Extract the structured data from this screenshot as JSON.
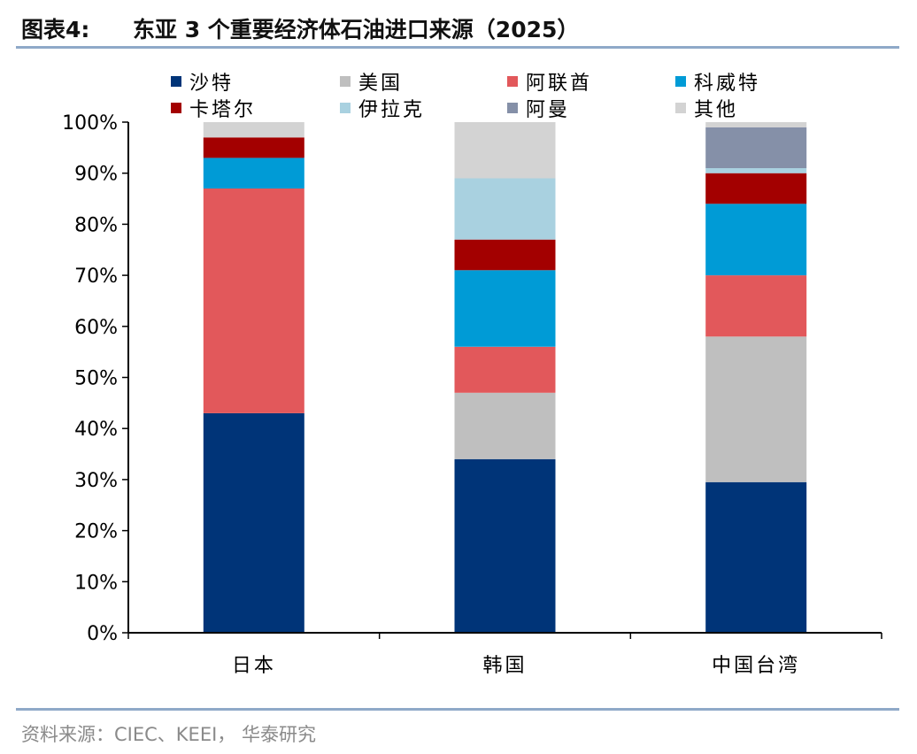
{
  "header": {
    "figure_label": "图表4:",
    "title": "东亚 3 个重要经济体石油进口来源（2025）"
  },
  "footer": {
    "source": "资料来源：CIEC、KEEI， 华泰研究"
  },
  "colors": {
    "沙特": "#003478",
    "美国": "#bfbfbf",
    "阿联酋": "#e2585b",
    "科威特": "#009bd6",
    "卡塔尔": "#a30000",
    "伊拉克": "#a9d1e0",
    "阿曼": "#8590a8",
    "其他": "#d3d3d3",
    "rule": "#8fa9c8"
  },
  "chart_data": {
    "type": "bar",
    "stacked": true,
    "title": "",
    "xlabel": "",
    "ylabel": "",
    "ylim": [
      0,
      100
    ],
    "y_ticks": [
      "0%",
      "10%",
      "20%",
      "30%",
      "40%",
      "50%",
      "60%",
      "70%",
      "80%",
      "90%",
      "100%"
    ],
    "legend_position": "top",
    "categories": [
      "日本",
      "韩国",
      "中国台湾"
    ],
    "series": [
      {
        "name": "沙特",
        "values": [
          43,
          34,
          29.5
        ]
      },
      {
        "name": "美国",
        "values": [
          0,
          13,
          28.5
        ]
      },
      {
        "name": "阿联酋",
        "values": [
          44,
          9,
          12
        ]
      },
      {
        "name": "科威特",
        "values": [
          6,
          15,
          14
        ]
      },
      {
        "name": "卡塔尔",
        "values": [
          4,
          6,
          6
        ]
      },
      {
        "name": "伊拉克",
        "values": [
          0,
          12,
          1
        ]
      },
      {
        "name": "阿曼",
        "values": [
          0,
          0,
          8
        ]
      },
      {
        "name": "其他",
        "values": [
          3,
          11,
          1
        ]
      }
    ]
  }
}
